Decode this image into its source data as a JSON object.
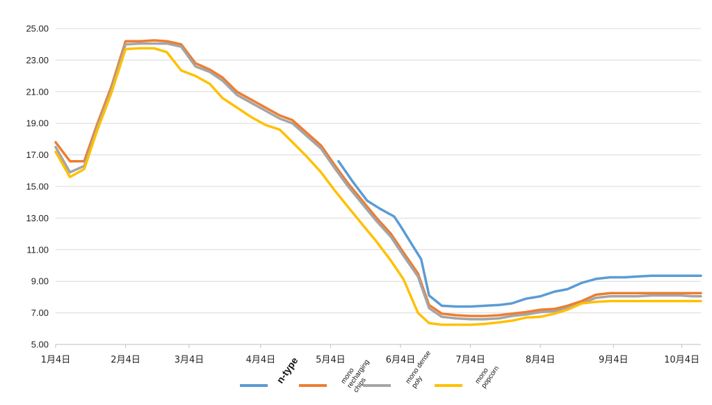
{
  "chart_data": {
    "type": "line",
    "title": "",
    "xlabel": "",
    "ylabel": "",
    "ylim": [
      5.0,
      25.0
    ],
    "yticks": [
      "25.00",
      "23.00",
      "21.00",
      "19.00",
      "17.00",
      "15.00",
      "13.00",
      "11.00",
      "9.00",
      "7.00",
      "5.00"
    ],
    "xticks": [
      "1月4日",
      "2月4日",
      "3月4日",
      "4月4日",
      "5月4日",
      "6月4日",
      "7月4日",
      "8月4日",
      "9月4日",
      "10月4日"
    ],
    "xtick_weeks": [
      0,
      4.4,
      8.4,
      12.9,
      17.3,
      21.7,
      26.1,
      30.5,
      35.1,
      39.4
    ],
    "xlim_weeks": [
      0,
      40.6
    ],
    "grid": true,
    "legend_position": "bottom",
    "series": [
      {
        "name": "n-type",
        "color": "#5B9BD5",
        "points": [
          [
            17.8,
            16.6
          ],
          [
            18.7,
            15.3
          ],
          [
            19.6,
            14.1
          ],
          [
            20.4,
            13.6
          ],
          [
            21.3,
            13.1
          ],
          [
            21.7,
            12.5
          ],
          [
            22.5,
            11.2
          ],
          [
            23.0,
            10.4
          ],
          [
            23.5,
            8.1
          ],
          [
            24.3,
            7.45
          ],
          [
            25.2,
            7.4
          ],
          [
            26.1,
            7.4
          ],
          [
            27.0,
            7.45
          ],
          [
            27.9,
            7.5
          ],
          [
            28.7,
            7.6
          ],
          [
            29.6,
            7.9
          ],
          [
            30.5,
            8.05
          ],
          [
            31.4,
            8.35
          ],
          [
            32.2,
            8.5
          ],
          [
            33.1,
            8.9
          ],
          [
            34.0,
            9.15
          ],
          [
            34.9,
            9.25
          ],
          [
            35.8,
            9.25
          ],
          [
            36.6,
            9.3
          ],
          [
            37.5,
            9.35
          ],
          [
            38.4,
            9.35
          ],
          [
            39.3,
            9.35
          ],
          [
            40.1,
            9.35
          ],
          [
            40.6,
            9.35
          ]
        ]
      },
      {
        "name": "mono recharging chips",
        "color": "#ED7D31",
        "points": [
          [
            0,
            17.8
          ],
          [
            0.9,
            16.6
          ],
          [
            1.8,
            16.6
          ],
          [
            2.6,
            18.9
          ],
          [
            3.5,
            21.3
          ],
          [
            4.4,
            24.2
          ],
          [
            5.3,
            24.2
          ],
          [
            6.2,
            24.25
          ],
          [
            7.0,
            24.2
          ],
          [
            7.9,
            24.0
          ],
          [
            8.8,
            22.8
          ],
          [
            9.7,
            22.4
          ],
          [
            10.5,
            21.9
          ],
          [
            11.4,
            21.0
          ],
          [
            12.3,
            20.5
          ],
          [
            13.2,
            20.0
          ],
          [
            14.1,
            19.5
          ],
          [
            14.9,
            19.2
          ],
          [
            15.8,
            18.4
          ],
          [
            16.7,
            17.6
          ],
          [
            17.6,
            16.3
          ],
          [
            18.4,
            15.2
          ],
          [
            19.3,
            14.1
          ],
          [
            20.2,
            13.0
          ],
          [
            21.1,
            12.0
          ],
          [
            21.9,
            10.8
          ],
          [
            22.8,
            9.5
          ],
          [
            23.5,
            7.5
          ],
          [
            24.3,
            6.95
          ],
          [
            25.2,
            6.85
          ],
          [
            26.1,
            6.8
          ],
          [
            27.0,
            6.8
          ],
          [
            27.9,
            6.85
          ],
          [
            28.7,
            6.95
          ],
          [
            29.6,
            7.05
          ],
          [
            30.5,
            7.2
          ],
          [
            31.4,
            7.25
          ],
          [
            32.2,
            7.45
          ],
          [
            33.1,
            7.75
          ],
          [
            34.0,
            8.15
          ],
          [
            34.9,
            8.25
          ],
          [
            35.8,
            8.25
          ],
          [
            36.6,
            8.25
          ],
          [
            37.5,
            8.25
          ],
          [
            38.4,
            8.25
          ],
          [
            39.3,
            8.25
          ],
          [
            40.1,
            8.25
          ],
          [
            40.6,
            8.25
          ]
        ]
      },
      {
        "name": "mono dense poly",
        "color": "#A5A5A5",
        "points": [
          [
            0,
            17.5
          ],
          [
            0.9,
            15.9
          ],
          [
            1.8,
            16.3
          ],
          [
            2.6,
            18.7
          ],
          [
            3.5,
            21.1
          ],
          [
            4.4,
            24.0
          ],
          [
            5.3,
            24.05
          ],
          [
            6.2,
            24.05
          ],
          [
            7.0,
            24.05
          ],
          [
            7.9,
            23.85
          ],
          [
            8.8,
            22.6
          ],
          [
            9.7,
            22.25
          ],
          [
            10.5,
            21.7
          ],
          [
            11.4,
            20.8
          ],
          [
            12.3,
            20.3
          ],
          [
            13.2,
            19.8
          ],
          [
            14.1,
            19.3
          ],
          [
            14.9,
            19.0
          ],
          [
            15.8,
            18.2
          ],
          [
            16.7,
            17.4
          ],
          [
            17.6,
            16.1
          ],
          [
            18.4,
            15.0
          ],
          [
            19.3,
            13.9
          ],
          [
            20.2,
            12.8
          ],
          [
            21.1,
            11.8
          ],
          [
            21.9,
            10.6
          ],
          [
            22.8,
            9.3
          ],
          [
            23.5,
            7.3
          ],
          [
            24.3,
            6.75
          ],
          [
            25.2,
            6.65
          ],
          [
            26.1,
            6.6
          ],
          [
            27.0,
            6.6
          ],
          [
            27.9,
            6.65
          ],
          [
            28.7,
            6.8
          ],
          [
            29.6,
            6.9
          ],
          [
            30.5,
            7.05
          ],
          [
            31.4,
            7.1
          ],
          [
            32.2,
            7.3
          ],
          [
            33.1,
            7.6
          ],
          [
            34.0,
            7.95
          ],
          [
            34.9,
            8.05
          ],
          [
            35.8,
            8.05
          ],
          [
            36.6,
            8.05
          ],
          [
            37.5,
            8.1
          ],
          [
            38.4,
            8.1
          ],
          [
            39.3,
            8.1
          ],
          [
            40.1,
            8.05
          ],
          [
            40.6,
            8.05
          ]
        ]
      },
      {
        "name": "mono popcorn",
        "color": "#FFC000",
        "points": [
          [
            0,
            17.2
          ],
          [
            0.9,
            15.6
          ],
          [
            1.8,
            16.1
          ],
          [
            2.6,
            18.5
          ],
          [
            3.5,
            20.9
          ],
          [
            4.4,
            23.7
          ],
          [
            5.3,
            23.75
          ],
          [
            6.2,
            23.75
          ],
          [
            7.0,
            23.5
          ],
          [
            7.9,
            22.35
          ],
          [
            8.8,
            22.0
          ],
          [
            9.7,
            21.5
          ],
          [
            10.5,
            20.6
          ],
          [
            11.4,
            20.0
          ],
          [
            12.3,
            19.4
          ],
          [
            13.2,
            18.9
          ],
          [
            14.1,
            18.6
          ],
          [
            14.9,
            17.8
          ],
          [
            15.8,
            16.9
          ],
          [
            16.7,
            15.9
          ],
          [
            17.6,
            14.7
          ],
          [
            18.4,
            13.7
          ],
          [
            19.3,
            12.6
          ],
          [
            20.2,
            11.5
          ],
          [
            21.1,
            10.3
          ],
          [
            21.9,
            9.1
          ],
          [
            22.8,
            7.0
          ],
          [
            23.5,
            6.35
          ],
          [
            24.3,
            6.25
          ],
          [
            25.2,
            6.25
          ],
          [
            26.1,
            6.25
          ],
          [
            27.0,
            6.3
          ],
          [
            27.9,
            6.4
          ],
          [
            28.7,
            6.5
          ],
          [
            29.6,
            6.7
          ],
          [
            30.5,
            6.75
          ],
          [
            31.4,
            6.95
          ],
          [
            32.2,
            7.2
          ],
          [
            33.1,
            7.6
          ],
          [
            34.0,
            7.7
          ],
          [
            34.9,
            7.75
          ],
          [
            35.8,
            7.75
          ],
          [
            36.6,
            7.75
          ],
          [
            37.5,
            7.75
          ],
          [
            38.4,
            7.75
          ],
          [
            39.3,
            7.75
          ],
          [
            40.1,
            7.75
          ],
          [
            40.6,
            7.75
          ]
        ]
      }
    ],
    "legend_labels": [
      {
        "lines": [
          "n-type"
        ],
        "bold": true
      },
      {
        "lines": [
          "mono",
          "recharging",
          "chips"
        ],
        "bold": false
      },
      {
        "lines": [
          "mono dense",
          "poly"
        ],
        "bold": false
      },
      {
        "lines": [
          "mono",
          "popcorn"
        ],
        "bold": false
      }
    ]
  }
}
